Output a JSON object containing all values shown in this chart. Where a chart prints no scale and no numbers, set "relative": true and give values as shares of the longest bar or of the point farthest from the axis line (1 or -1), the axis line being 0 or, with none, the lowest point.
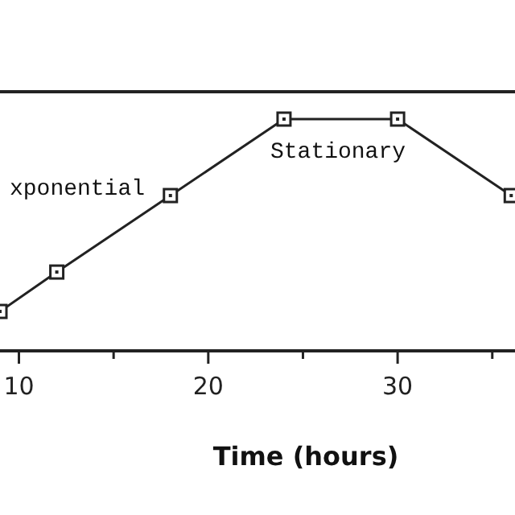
{
  "chart_data": {
    "type": "line",
    "relative": true,
    "xlabel": "Time (hours)",
    "x": [
      9,
      12,
      18,
      24,
      30,
      36
    ],
    "series": [
      {
        "color": "#222222",
        "values": [
          0.17,
          0.34,
          0.67,
          1,
          1,
          0.67
        ]
      }
    ],
    "xlim": [
      9,
      36.2
    ],
    "xticks": [
      10,
      {
        "value": 15,
        "label": null
      },
      20,
      {
        "value": 25,
        "label": null
      },
      30,
      {
        "value": 35,
        "label": null
      }
    ],
    "marker": "square",
    "line_style": "solid",
    "grid": false,
    "annotations": [
      "xponential",
      "Stationary"
    ]
  }
}
